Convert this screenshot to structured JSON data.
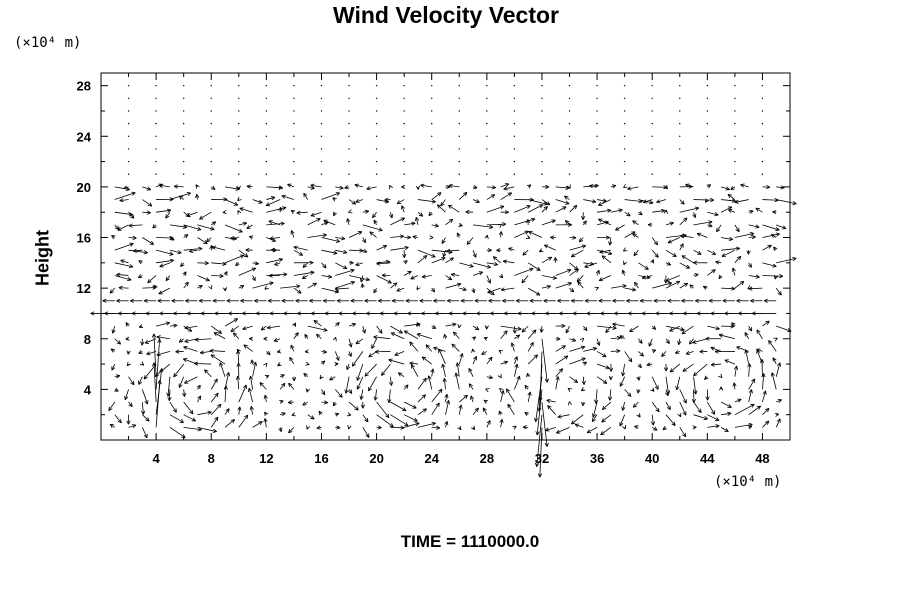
{
  "chart_data": {
    "type": "vector_field",
    "title": "Wind Velocity Vector",
    "xlabel": "",
    "ylabel": "Height",
    "x_unit": "(×10⁴ m)",
    "y_unit": "(×10⁴ m)",
    "xlim": [
      0,
      50
    ],
    "ylim": [
      0,
      29
    ],
    "x_ticks": [
      "4",
      "8",
      "12",
      "16",
      "20",
      "24",
      "28",
      "32",
      "36",
      "40",
      "44",
      "48"
    ],
    "y_ticks": [
      "4",
      "8",
      "12",
      "16",
      "20",
      "24",
      "28"
    ],
    "grid": false,
    "legend": "none",
    "annotation": "TIME = 1110000.0",
    "field_description": "Vectors on a regular grid; strong westward band near height 10, circulation cells below height 8 centered near x=6-8, 20-24, 34 and 44-46, variable flow between heights 12-20, near-calm above height 21."
  }
}
